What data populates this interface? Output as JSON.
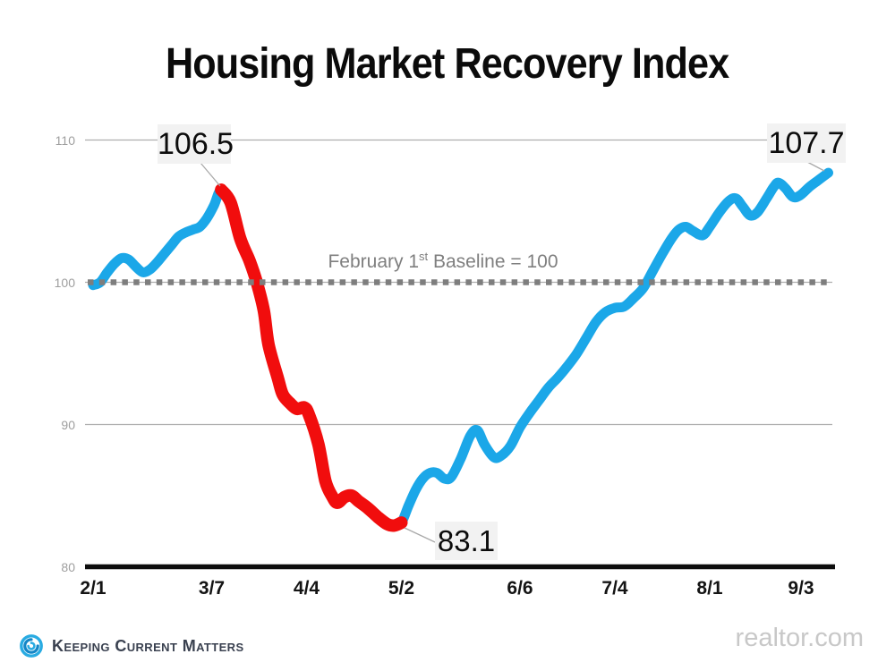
{
  "title": "Housing Market Recovery Index",
  "baseline_label": {
    "prefix": "February 1",
    "sup": "st",
    "suffix": " Baseline = 100"
  },
  "annotations": {
    "peak": "106.5",
    "trough": "83.1",
    "end": "107.7"
  },
  "footer": {
    "brand": "Keeping Current Matters",
    "source": "realtor.com"
  },
  "colors": {
    "line_blue": "#1ba7e8",
    "line_red": "#f10d0d",
    "baseline_dash": "#7e7e7e",
    "gridline": "#aeaeae",
    "axis": "#0d0d0d",
    "callout_bg": "#f2f2f2",
    "leader": "#a9a9a9",
    "kcm_blue": "#29abe2",
    "kcm_dark_blue": "#1386c7"
  },
  "chart_data": {
    "type": "line",
    "title": "Housing Market Recovery Index",
    "xlabel": "",
    "ylabel": "",
    "ylim": [
      80,
      111
    ],
    "baseline_value": 100,
    "grid": "horizontal",
    "y_ticks": [
      110,
      100,
      90,
      80
    ],
    "x_ticks": [
      {
        "label": "2/1",
        "week": 0
      },
      {
        "label": "3/7",
        "week": 5
      },
      {
        "label": "4/4",
        "week": 9
      },
      {
        "label": "5/2",
        "week": 13
      },
      {
        "label": "6/6",
        "week": 18
      },
      {
        "label": "7/4",
        "week": 22
      },
      {
        "label": "8/1",
        "week": 26
      },
      {
        "label": "9/3",
        "week": 29.85
      }
    ],
    "annotated_values": {
      "peak": 106.5,
      "trough": 83.1,
      "latest": 107.7
    },
    "red_segment_weeks": [
      5.4,
      13.0
    ],
    "series": [
      {
        "name": "Housing Market Recovery Index (weeks since 2/1)",
        "points": [
          [
            0,
            99.8
          ],
          [
            0.3,
            100.0
          ],
          [
            0.6,
            100.7
          ],
          [
            0.9,
            101.3
          ],
          [
            1.2,
            101.7
          ],
          [
            1.5,
            101.6
          ],
          [
            1.8,
            101.1
          ],
          [
            2.1,
            100.7
          ],
          [
            2.4,
            100.9
          ],
          [
            2.7,
            101.4
          ],
          [
            3.0,
            102.0
          ],
          [
            3.3,
            102.6
          ],
          [
            3.6,
            103.2
          ],
          [
            3.9,
            103.5
          ],
          [
            4.2,
            103.7
          ],
          [
            4.5,
            103.9
          ],
          [
            4.8,
            104.5
          ],
          [
            5.1,
            105.4
          ],
          [
            5.4,
            106.5
          ],
          [
            5.8,
            105.6
          ],
          [
            6.2,
            103.1
          ],
          [
            6.6,
            101.5
          ],
          [
            6.9,
            100.0
          ],
          [
            7.2,
            98.0
          ],
          [
            7.4,
            95.6
          ],
          [
            7.8,
            93.2
          ],
          [
            8.0,
            92.1
          ],
          [
            8.3,
            91.5
          ],
          [
            8.6,
            91.1
          ],
          [
            8.9,
            91.2
          ],
          [
            9.1,
            90.7
          ],
          [
            9.5,
            88.6
          ],
          [
            9.8,
            86.0
          ],
          [
            10.1,
            84.9
          ],
          [
            10.3,
            84.5
          ],
          [
            10.6,
            84.9
          ],
          [
            10.9,
            85.0
          ],
          [
            11.2,
            84.6
          ],
          [
            11.6,
            84.1
          ],
          [
            12.0,
            83.5
          ],
          [
            12.4,
            83.0
          ],
          [
            12.7,
            82.9
          ],
          [
            13.0,
            83.1
          ],
          [
            13.3,
            84.3
          ],
          [
            13.6,
            85.4
          ],
          [
            13.9,
            86.2
          ],
          [
            14.2,
            86.6
          ],
          [
            14.5,
            86.6
          ],
          [
            14.8,
            86.2
          ],
          [
            15.1,
            86.3
          ],
          [
            15.5,
            87.6
          ],
          [
            15.9,
            89.2
          ],
          [
            16.2,
            89.6
          ],
          [
            16.5,
            88.6
          ],
          [
            16.9,
            87.7
          ],
          [
            17.2,
            87.8
          ],
          [
            17.6,
            88.5
          ],
          [
            18.0,
            89.8
          ],
          [
            18.4,
            90.8
          ],
          [
            18.8,
            91.7
          ],
          [
            19.2,
            92.6
          ],
          [
            19.6,
            93.3
          ],
          [
            20.0,
            94.1
          ],
          [
            20.4,
            95.0
          ],
          [
            20.8,
            96.1
          ],
          [
            21.2,
            97.2
          ],
          [
            21.6,
            97.9
          ],
          [
            22.0,
            98.2
          ],
          [
            22.4,
            98.3
          ],
          [
            22.8,
            98.9
          ],
          [
            23.2,
            99.6
          ],
          [
            23.6,
            100.8
          ],
          [
            24.0,
            102.0
          ],
          [
            24.4,
            103.1
          ],
          [
            24.7,
            103.7
          ],
          [
            25.0,
            103.9
          ],
          [
            25.3,
            103.6
          ],
          [
            25.7,
            103.3
          ],
          [
            26.0,
            103.9
          ],
          [
            26.4,
            104.9
          ],
          [
            26.8,
            105.7
          ],
          [
            27.1,
            105.9
          ],
          [
            27.4,
            105.3
          ],
          [
            27.7,
            104.7
          ],
          [
            28.0,
            104.9
          ],
          [
            28.4,
            105.9
          ],
          [
            28.7,
            106.7
          ],
          [
            28.9,
            107.0
          ],
          [
            29.2,
            106.6
          ],
          [
            29.5,
            106.0
          ],
          [
            29.8,
            106.1
          ],
          [
            30.2,
            106.7
          ],
          [
            30.6,
            107.2
          ],
          [
            31.0,
            107.7
          ]
        ]
      }
    ]
  }
}
